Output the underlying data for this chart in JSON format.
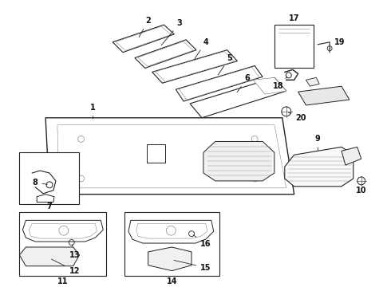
{
  "bg_color": "#ffffff",
  "line_color": "#222222",
  "text_color": "#111111",
  "gray": "#888888",
  "lightgray": "#cccccc"
}
